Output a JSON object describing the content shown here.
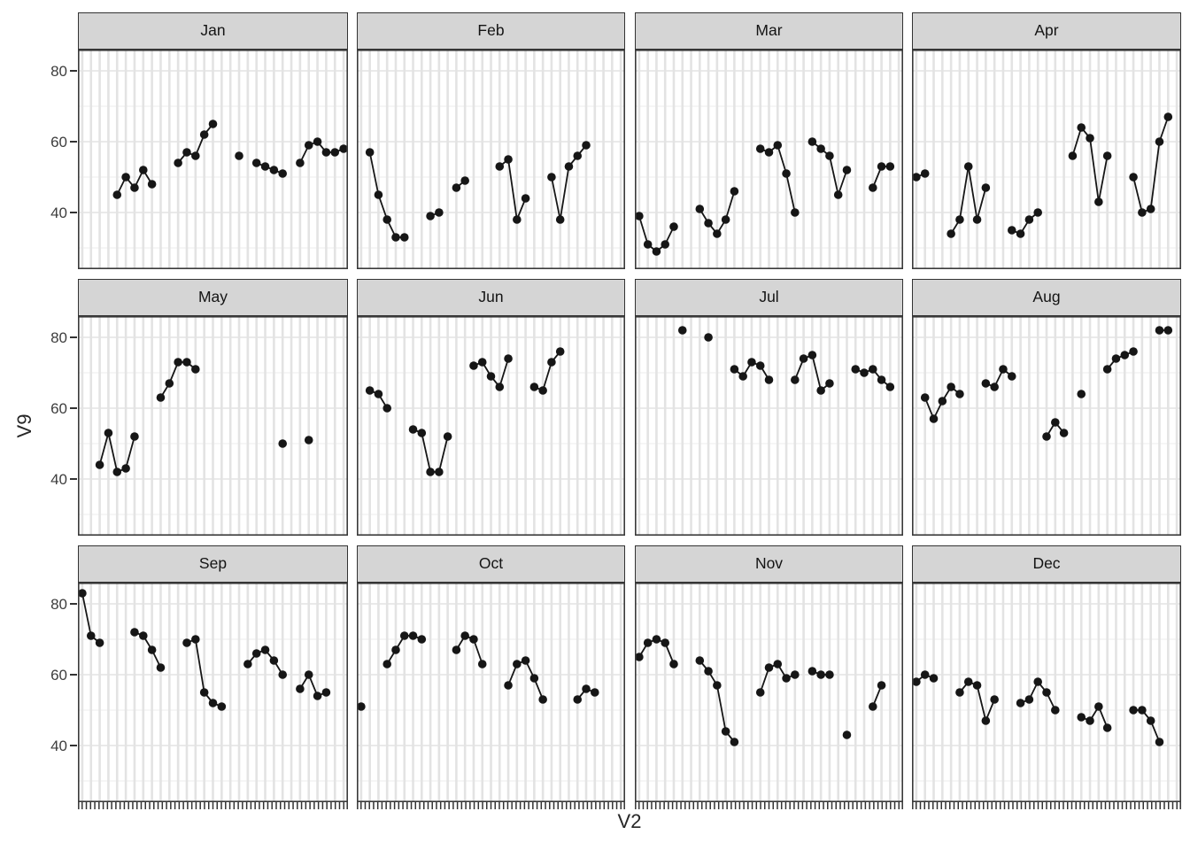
{
  "figure": {
    "y_tick_labels": [
      "80",
      "60",
      "40"
    ],
    "rows": 3,
    "cols": 4
  },
  "style": {
    "point_color": "#161616",
    "line_color": "#161616",
    "strip_bg": "#d5d5d5",
    "strip_border": "#333333",
    "panel_bg": "#ffffff",
    "panel_border": "#3a3a3a",
    "grid_major": "#e3e3e3",
    "grid_minor": "#f0f0f0",
    "tick_mark_color": "#333333",
    "tick_label_color": "#3d3d3d",
    "axis_title_color": "#262626"
  },
  "chart_data": {
    "type": "line",
    "title": "",
    "xlabel": "V2",
    "ylabel": "V9",
    "facet_variable": "month",
    "facet_layout": "4 columns x 3 rows",
    "legend": "none",
    "grid": "on",
    "x_range": [
      1,
      31
    ],
    "ylim": [
      24,
      86
    ],
    "y_major_ticks": [
      40,
      60,
      80
    ],
    "y_minor_gridlines": [
      30,
      50,
      70
    ],
    "point_style": "filled black circles connected by lines for consecutive days",
    "panels": [
      {
        "label": "Jan",
        "points": [
          [
            5,
            45
          ],
          [
            6,
            50
          ],
          [
            7,
            47
          ],
          [
            8,
            52
          ],
          [
            9,
            48
          ],
          [
            12,
            54
          ],
          [
            13,
            57
          ],
          [
            14,
            56
          ],
          [
            15,
            62
          ],
          [
            16,
            65
          ],
          [
            19,
            56
          ],
          [
            21,
            54
          ],
          [
            22,
            53
          ],
          [
            23,
            52
          ],
          [
            24,
            51
          ],
          [
            26,
            54
          ],
          [
            27,
            59
          ],
          [
            28,
            60
          ],
          [
            29,
            57
          ],
          [
            30,
            57
          ],
          [
            31,
            58
          ]
        ]
      },
      {
        "label": "Feb",
        "points": [
          [
            2,
            57
          ],
          [
            3,
            45
          ],
          [
            4,
            38
          ],
          [
            5,
            33
          ],
          [
            6,
            33
          ],
          [
            9,
            39
          ],
          [
            10,
            40
          ],
          [
            12,
            47
          ],
          [
            13,
            49
          ],
          [
            17,
            53
          ],
          [
            18,
            55
          ],
          [
            19,
            38
          ],
          [
            20,
            44
          ],
          [
            23,
            50
          ],
          [
            24,
            38
          ],
          [
            25,
            53
          ],
          [
            26,
            56
          ],
          [
            27,
            59
          ]
        ]
      },
      {
        "label": "Mar",
        "points": [
          [
            1,
            39
          ],
          [
            2,
            31
          ],
          [
            3,
            29
          ],
          [
            4,
            31
          ],
          [
            5,
            36
          ],
          [
            8,
            41
          ],
          [
            9,
            37
          ],
          [
            10,
            34
          ],
          [
            11,
            38
          ],
          [
            12,
            46
          ],
          [
            15,
            58
          ],
          [
            16,
            57
          ],
          [
            17,
            59
          ],
          [
            18,
            51
          ],
          [
            19,
            40
          ],
          [
            21,
            60
          ],
          [
            22,
            58
          ],
          [
            23,
            56
          ],
          [
            24,
            45
          ],
          [
            25,
            52
          ],
          [
            28,
            47
          ],
          [
            29,
            53
          ],
          [
            30,
            53
          ]
        ]
      },
      {
        "label": "Apr",
        "points": [
          [
            1,
            50
          ],
          [
            2,
            51
          ],
          [
            5,
            34
          ],
          [
            6,
            38
          ],
          [
            7,
            53
          ],
          [
            8,
            38
          ],
          [
            9,
            47
          ],
          [
            12,
            35
          ],
          [
            13,
            34
          ],
          [
            14,
            38
          ],
          [
            15,
            40
          ],
          [
            19,
            56
          ],
          [
            20,
            64
          ],
          [
            21,
            61
          ],
          [
            22,
            43
          ],
          [
            23,
            56
          ],
          [
            26,
            50
          ],
          [
            27,
            40
          ],
          [
            28,
            41
          ],
          [
            29,
            60
          ],
          [
            30,
            67
          ]
        ]
      },
      {
        "label": "May",
        "points": [
          [
            3,
            44
          ],
          [
            4,
            53
          ],
          [
            5,
            42
          ],
          [
            6,
            43
          ],
          [
            7,
            52
          ],
          [
            10,
            63
          ],
          [
            11,
            67
          ],
          [
            12,
            73
          ],
          [
            13,
            73
          ],
          [
            14,
            71
          ],
          [
            24,
            50
          ],
          [
            27,
            51
          ]
        ]
      },
      {
        "label": "Jun",
        "points": [
          [
            2,
            65
          ],
          [
            3,
            64
          ],
          [
            4,
            60
          ],
          [
            7,
            54
          ],
          [
            8,
            53
          ],
          [
            9,
            42
          ],
          [
            10,
            42
          ],
          [
            11,
            52
          ],
          [
            14,
            72
          ],
          [
            15,
            73
          ],
          [
            16,
            69
          ],
          [
            17,
            66
          ],
          [
            18,
            74
          ],
          [
            21,
            66
          ],
          [
            22,
            65
          ],
          [
            23,
            73
          ],
          [
            24,
            76
          ]
        ]
      },
      {
        "label": "Jul",
        "points": [
          [
            6,
            82
          ],
          [
            9,
            80
          ],
          [
            12,
            71
          ],
          [
            13,
            69
          ],
          [
            14,
            73
          ],
          [
            15,
            72
          ],
          [
            16,
            68
          ],
          [
            19,
            68
          ],
          [
            20,
            74
          ],
          [
            21,
            75
          ],
          [
            22,
            65
          ],
          [
            23,
            67
          ],
          [
            26,
            71
          ],
          [
            27,
            70
          ],
          [
            28,
            71
          ],
          [
            29,
            68
          ],
          [
            30,
            66
          ]
        ]
      },
      {
        "label": "Aug",
        "points": [
          [
            2,
            63
          ],
          [
            3,
            57
          ],
          [
            4,
            62
          ],
          [
            5,
            66
          ],
          [
            6,
            64
          ],
          [
            9,
            67
          ],
          [
            10,
            66
          ],
          [
            11,
            71
          ],
          [
            12,
            69
          ],
          [
            16,
            52
          ],
          [
            17,
            56
          ],
          [
            18,
            53
          ],
          [
            20,
            64
          ],
          [
            23,
            71
          ],
          [
            24,
            74
          ],
          [
            25,
            75
          ],
          [
            26,
            76
          ],
          [
            29,
            82
          ],
          [
            30,
            82
          ]
        ]
      },
      {
        "label": "Sep",
        "points": [
          [
            1,
            83
          ],
          [
            2,
            71
          ],
          [
            3,
            69
          ],
          [
            7,
            72
          ],
          [
            8,
            71
          ],
          [
            9,
            67
          ],
          [
            10,
            62
          ],
          [
            13,
            69
          ],
          [
            14,
            70
          ],
          [
            15,
            55
          ],
          [
            16,
            52
          ],
          [
            17,
            51
          ],
          [
            20,
            63
          ],
          [
            21,
            66
          ],
          [
            22,
            67
          ],
          [
            23,
            64
          ],
          [
            24,
            60
          ],
          [
            26,
            56
          ],
          [
            27,
            60
          ],
          [
            28,
            54
          ],
          [
            29,
            55
          ]
        ]
      },
      {
        "label": "Oct",
        "points": [
          [
            1,
            51
          ],
          [
            4,
            63
          ],
          [
            5,
            67
          ],
          [
            6,
            71
          ],
          [
            7,
            71
          ],
          [
            8,
            70
          ],
          [
            12,
            67
          ],
          [
            13,
            71
          ],
          [
            14,
            70
          ],
          [
            15,
            63
          ],
          [
            18,
            57
          ],
          [
            19,
            63
          ],
          [
            20,
            64
          ],
          [
            21,
            59
          ],
          [
            22,
            53
          ],
          [
            26,
            53
          ],
          [
            27,
            56
          ],
          [
            28,
            55
          ]
        ]
      },
      {
        "label": "Nov",
        "points": [
          [
            1,
            65
          ],
          [
            2,
            69
          ],
          [
            3,
            70
          ],
          [
            4,
            69
          ],
          [
            5,
            63
          ],
          [
            8,
            64
          ],
          [
            9,
            61
          ],
          [
            10,
            57
          ],
          [
            11,
            44
          ],
          [
            12,
            41
          ],
          [
            15,
            55
          ],
          [
            16,
            62
          ],
          [
            17,
            63
          ],
          [
            18,
            59
          ],
          [
            19,
            60
          ],
          [
            21,
            61
          ],
          [
            22,
            60
          ],
          [
            23,
            60
          ],
          [
            25,
            43
          ],
          [
            28,
            51
          ],
          [
            29,
            57
          ]
        ]
      },
      {
        "label": "Dec",
        "points": [
          [
            1,
            58
          ],
          [
            2,
            60
          ],
          [
            3,
            59
          ],
          [
            6,
            55
          ],
          [
            7,
            58
          ],
          [
            8,
            57
          ],
          [
            9,
            47
          ],
          [
            10,
            53
          ],
          [
            13,
            52
          ],
          [
            14,
            53
          ],
          [
            15,
            58
          ],
          [
            16,
            55
          ],
          [
            17,
            50
          ],
          [
            20,
            48
          ],
          [
            21,
            47
          ],
          [
            22,
            51
          ],
          [
            23,
            45
          ],
          [
            26,
            50
          ],
          [
            27,
            50
          ],
          [
            28,
            47
          ],
          [
            29,
            41
          ]
        ]
      }
    ]
  }
}
